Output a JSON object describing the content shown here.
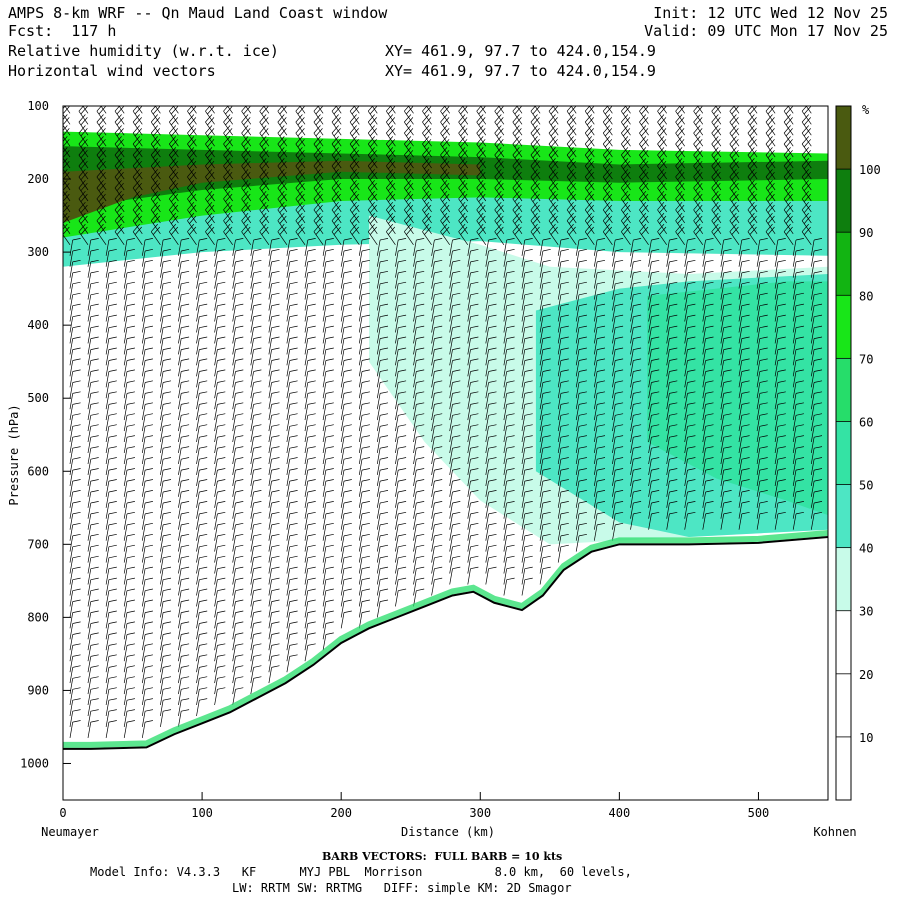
{
  "header": {
    "title": "AMPS 8-km WRF -- Qn Maud Land Coast window",
    "fcst": "Fcst:  117 h",
    "field1": "Relative humidity (w.r.t. ice)",
    "field2": "Horizontal wind vectors",
    "init": "Init: 12 UTC Wed 12 Nov 25",
    "valid": "Valid: 09 UTC Mon 17 Nov 25",
    "xy1": "XY= 461.9, 97.7 to 424.0,154.9",
    "xy2": "XY= 461.9, 97.7 to 424.0,154.9"
  },
  "chart_data": {
    "type": "heatmap",
    "title": "Relative humidity (w.r.t. ice) cross section with wind barbs",
    "xlabel": "Distance (km)",
    "ylabel": "Pressure (hPa)",
    "xlim": [
      0,
      550
    ],
    "ylim": [
      1050,
      100
    ],
    "x_ticks": [
      0,
      100,
      200,
      300,
      400,
      500
    ],
    "y_ticks": [
      100,
      200,
      300,
      400,
      500,
      600,
      700,
      800,
      900,
      1000
    ],
    "left_endpoint": "Neumayer",
    "right_endpoint": "Kohnen",
    "colorbar": {
      "unit": "%",
      "ticks": [
        10,
        20,
        30,
        40,
        50,
        60,
        70,
        80,
        90,
        100
      ],
      "bins": [
        {
          "from": 0,
          "to": 30,
          "color": "#ffffff"
        },
        {
          "from": 30,
          "to": 40,
          "color": "#c8fbe9"
        },
        {
          "from": 40,
          "to": 50,
          "color": "#4de6c4"
        },
        {
          "from": 50,
          "to": 60,
          "color": "#34e3a4"
        },
        {
          "from": 60,
          "to": 70,
          "color": "#26dd6a"
        },
        {
          "from": 70,
          "to": 80,
          "color": "#18e618"
        },
        {
          "from": 80,
          "to": 90,
          "color": "#12b412"
        },
        {
          "from": 90,
          "to": 100,
          "color": "#0e7e0e"
        },
        {
          "from": 100,
          "to": 110,
          "color": "#4a5a10"
        }
      ]
    },
    "terrain_surface_hpa": [
      {
        "x": 0,
        "p": 980
      },
      {
        "x": 20,
        "p": 980
      },
      {
        "x": 60,
        "p": 978
      },
      {
        "x": 80,
        "p": 960
      },
      {
        "x": 100,
        "p": 945
      },
      {
        "x": 120,
        "p": 930
      },
      {
        "x": 140,
        "p": 910
      },
      {
        "x": 160,
        "p": 890
      },
      {
        "x": 180,
        "p": 865
      },
      {
        "x": 200,
        "p": 835
      },
      {
        "x": 220,
        "p": 815
      },
      {
        "x": 240,
        "p": 800
      },
      {
        "x": 260,
        "p": 785
      },
      {
        "x": 280,
        "p": 770
      },
      {
        "x": 295,
        "p": 765
      },
      {
        "x": 310,
        "p": 780
      },
      {
        "x": 330,
        "p": 790
      },
      {
        "x": 345,
        "p": 770
      },
      {
        "x": 360,
        "p": 735
      },
      {
        "x": 380,
        "p": 710
      },
      {
        "x": 400,
        "p": 700
      },
      {
        "x": 450,
        "p": 700
      },
      {
        "x": 500,
        "p": 698
      },
      {
        "x": 550,
        "p": 690
      }
    ],
    "rh_layers": [
      {
        "rh_bin": 40,
        "top": [
          [
            0,
            185
          ],
          [
            100,
            190
          ],
          [
            200,
            200
          ],
          [
            300,
            205
          ],
          [
            400,
            215
          ],
          [
            550,
            230
          ]
        ],
        "bottom": [
          [
            0,
            320
          ],
          [
            100,
            300
          ],
          [
            200,
            290
          ],
          [
            300,
            285
          ],
          [
            400,
            300
          ],
          [
            550,
            305
          ]
        ]
      },
      {
        "rh_bin": 70,
        "top": [
          [
            0,
            135
          ],
          [
            100,
            140
          ],
          [
            200,
            145
          ],
          [
            300,
            150
          ],
          [
            400,
            160
          ],
          [
            550,
            165
          ]
        ],
        "bottom": [
          [
            0,
            280
          ],
          [
            100,
            250
          ],
          [
            200,
            230
          ],
          [
            300,
            225
          ],
          [
            400,
            230
          ],
          [
            550,
            230
          ]
        ]
      },
      {
        "rh_bin": 90,
        "top": [
          [
            0,
            155
          ],
          [
            100,
            160
          ],
          [
            200,
            165
          ],
          [
            300,
            170
          ],
          [
            400,
            180
          ],
          [
            550,
            175
          ]
        ],
        "bottom": [
          [
            0,
            240
          ],
          [
            100,
            215
          ],
          [
            200,
            200
          ],
          [
            300,
            200
          ],
          [
            400,
            205
          ],
          [
            550,
            200
          ]
        ]
      },
      {
        "rh_bin": 100,
        "top": [
          [
            0,
            190
          ],
          [
            50,
            185
          ],
          [
            100,
            180
          ],
          [
            200,
            175
          ],
          [
            300,
            180
          ]
        ],
        "bottom": [
          [
            0,
            260
          ],
          [
            50,
            225
          ],
          [
            100,
            205
          ],
          [
            200,
            190
          ],
          [
            300,
            195
          ]
        ]
      },
      {
        "rh_bin": 30,
        "top": [
          [
            220,
            250
          ],
          [
            260,
            270
          ],
          [
            300,
            290
          ],
          [
            350,
            320
          ],
          [
            450,
            330
          ],
          [
            550,
            320
          ]
        ],
        "bottom": [
          [
            220,
            450
          ],
          [
            260,
            560
          ],
          [
            300,
            640
          ],
          [
            350,
            700
          ],
          [
            450,
            690
          ],
          [
            550,
            680
          ]
        ]
      },
      {
        "rh_bin": 40,
        "top": [
          [
            340,
            380
          ],
          [
            400,
            350
          ],
          [
            450,
            340
          ],
          [
            550,
            330
          ]
        ],
        "bottom": [
          [
            340,
            600
          ],
          [
            400,
            670
          ],
          [
            450,
            690
          ],
          [
            550,
            680
          ]
        ]
      },
      {
        "rh_bin": 50,
        "top": [
          [
            420,
            360
          ],
          [
            470,
            350
          ],
          [
            520,
            340
          ],
          [
            550,
            340
          ]
        ],
        "bottom": [
          [
            420,
            560
          ],
          [
            470,
            610
          ],
          [
            520,
            640
          ],
          [
            550,
            660
          ]
        ]
      }
    ]
  },
  "footer": {
    "barb_note": "BARB VECTORS:  FULL BARB = 10 kts",
    "model_info": "Model Info: V4.3.3   KF      MYJ PBL  Morrison          8.0 km,  60 levels,",
    "model_info2": "LW: RRTM SW: RRTMG   DIFF: simple KM: 2D Smagor"
  }
}
